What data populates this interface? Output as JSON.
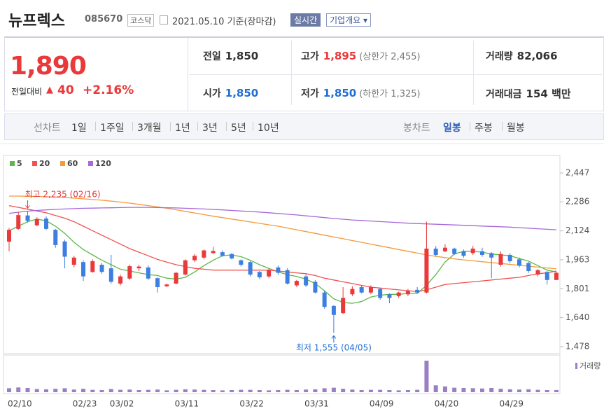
{
  "header": {
    "name": "뉴프렉스",
    "code": "085670",
    "market": "코스닥",
    "date": "2021.05.10 기준(장마감)",
    "realtime": "실시간",
    "overview": "기업개요"
  },
  "quote": {
    "price": "1,890",
    "change_label": "전일대비",
    "change": "40",
    "change_pct": "+2.16%"
  },
  "stats": [
    {
      "label": "전일",
      "value": "1,850"
    },
    {
      "label": "고가",
      "value": "1,895",
      "note": "(상한가 2,455)"
    },
    {
      "label": "거래량",
      "value": "82,066"
    },
    {
      "label": "시가",
      "value": "1,850"
    },
    {
      "label": "저가",
      "value": "1,850",
      "note": "(하한가 1,325)"
    },
    {
      "label": "거래대금",
      "value": "154 백만"
    }
  ],
  "tabs": {
    "line_label": "선차트",
    "line": [
      "1일",
      "1주일",
      "3개월",
      "1년",
      "3년",
      "5년",
      "10년"
    ],
    "candle_label": "봉차트",
    "candle": [
      "일봉",
      "주봉",
      "월봉"
    ]
  },
  "chart_data": {
    "type": "candlestick",
    "up_color": "#e9393b",
    "down_color": "#3d7fe0",
    "categories": [
      "02/10",
      null,
      null,
      null,
      null,
      null,
      null,
      "02/23",
      null,
      null,
      null,
      "03/02",
      null,
      null,
      null,
      null,
      null,
      null,
      "03/11",
      null,
      null,
      null,
      null,
      null,
      null,
      "03/22",
      null,
      null,
      null,
      null,
      null,
      null,
      "03/31",
      null,
      null,
      null,
      null,
      null,
      null,
      "04/09",
      null,
      null,
      null,
      null,
      null,
      null,
      "04/20",
      null,
      null,
      null,
      null,
      null,
      null,
      "04/29",
      null,
      null,
      null,
      null,
      null,
      null
    ],
    "open": [
      2064,
      2135,
      2210,
      2155,
      2193,
      2130,
      2065,
      1935,
      1950,
      1895,
      1935,
      1915,
      1830,
      1858,
      1915,
      1920,
      1860,
      1815,
      1830,
      1880,
      1960,
      1975,
      2000,
      2005,
      1995,
      1960,
      1950,
      1895,
      1870,
      1920,
      1905,
      1820,
      1870,
      1840,
      1780,
      1705,
      1665,
      1770,
      1810,
      1780,
      1800,
      1770,
      1760,
      1770,
      1795,
      1780,
      2025,
      2010,
      2025,
      2010,
      2000,
      2010,
      2000,
      1935,
      1990,
      1965,
      1945,
      1880,
      1895,
      1850
    ],
    "high": [
      2140,
      2230,
      2235,
      2200,
      2205,
      2135,
      2075,
      1985,
      1960,
      1965,
      1945,
      1990,
      1880,
      1935,
      1935,
      1930,
      1865,
      1830,
      1895,
      1965,
      1995,
      2020,
      2035,
      2015,
      2000,
      1965,
      1955,
      1900,
      1915,
      1930,
      1915,
      1850,
      1880,
      1850,
      1790,
      1710,
      1810,
      1815,
      1820,
      1820,
      1805,
      1775,
      1785,
      1800,
      1810,
      2175,
      2040,
      2050,
      2030,
      2020,
      2040,
      2030,
      2005,
      2010,
      2000,
      1975,
      1950,
      1910,
      1900,
      1895
    ],
    "low": [
      2010,
      2130,
      2170,
      2150,
      2130,
      2030,
      1915,
      1920,
      1845,
      1890,
      1885,
      1830,
      1820,
      1850,
      1900,
      1850,
      1780,
      1810,
      1825,
      1875,
      1950,
      1965,
      1995,
      1980,
      1965,
      1925,
      1870,
      1855,
      1860,
      1880,
      1825,
      1810,
      1810,
      1775,
      1690,
      1555,
      1660,
      1760,
      1775,
      1770,
      1740,
      1720,
      1750,
      1760,
      1775,
      1775,
      1980,
      2005,
      1990,
      1975,
      1990,
      1980,
      1860,
      1925,
      1945,
      1920,
      1890,
      1870,
      1825,
      1850
    ],
    "close": [
      2130,
      2212,
      2180,
      2190,
      2135,
      2045,
      1980,
      1975,
      1870,
      1955,
      1895,
      1840,
      1870,
      1927,
      1925,
      1858,
      1810,
      1825,
      1890,
      1960,
      1985,
      2015,
      2012,
      1985,
      1970,
      1935,
      1880,
      1865,
      1905,
      1890,
      1830,
      1845,
      1820,
      1780,
      1700,
      1655,
      1750,
      1800,
      1780,
      1810,
      1750,
      1750,
      1780,
      1790,
      1780,
      2025,
      1990,
      2030,
      1995,
      1985,
      2025,
      1990,
      1975,
      1995,
      1955,
      1930,
      1900,
      1905,
      1850,
      1890
    ],
    "series": [
      {
        "name": "5",
        "color": "#5cb847",
        "values": [
          2125,
          2150,
          2175,
          2190,
          2180,
          2150,
          2110,
          2060,
          2020,
          1990,
          1960,
          1935,
          1910,
          1900,
          1890,
          1880,
          1875,
          1860,
          1855,
          1865,
          1895,
          1930,
          1960,
          1985,
          1990,
          1980,
          1960,
          1935,
          1915,
          1895,
          1880,
          1870,
          1855,
          1830,
          1790,
          1745,
          1725,
          1720,
          1730,
          1755,
          1765,
          1770,
          1770,
          1775,
          1775,
          1820,
          1880,
          1950,
          1995,
          2010,
          2010,
          2005,
          1995,
          1990,
          1985,
          1970,
          1955,
          1930,
          1905,
          1895
        ]
      },
      {
        "name": "20",
        "color": "#ef5350",
        "values": [
          2265,
          2255,
          2245,
          2235,
          2225,
          2210,
          2195,
          2175,
          2150,
          2125,
          2100,
          2075,
          2050,
          2025,
          2005,
          1985,
          1965,
          1950,
          1935,
          1925,
          1915,
          1910,
          1905,
          1905,
          1905,
          1905,
          1905,
          1905,
          1905,
          1900,
          1895,
          1890,
          1885,
          1875,
          1860,
          1850,
          1840,
          1830,
          1820,
          1810,
          1805,
          1800,
          1795,
          1790,
          1785,
          1795,
          1810,
          1825,
          1830,
          1835,
          1840,
          1845,
          1850,
          1855,
          1860,
          1865,
          1875,
          1885,
          1890,
          1900
        ]
      },
      {
        "name": "60",
        "color": "#f5993a",
        "values": [
          2318,
          2318,
          2317,
          2316,
          2314,
          2312,
          2310,
          2307,
          2303,
          2299,
          2295,
          2290,
          2285,
          2279,
          2272,
          2265,
          2258,
          2250,
          2242,
          2233,
          2224,
          2215,
          2206,
          2198,
          2190,
          2182,
          2174,
          2166,
          2158,
          2150,
          2140,
          2130,
          2120,
          2110,
          2100,
          2090,
          2080,
          2070,
          2060,
          2050,
          2040,
          2030,
          2020,
          2010,
          2000,
          1990,
          1982,
          1975,
          1968,
          1962,
          1957,
          1952,
          1947,
          1942,
          1937,
          1932,
          1927,
          1922,
          1917,
          1912
        ]
      },
      {
        "name": "120",
        "color": "#a569d8",
        "values": [
          2222,
          2228,
          2234,
          2238,
          2241,
          2244,
          2246,
          2248,
          2250,
          2251,
          2252,
          2253,
          2254,
          2255,
          2255,
          2255,
          2254,
          2253,
          2252,
          2250,
          2248,
          2246,
          2244,
          2241,
          2238,
          2235,
          2232,
          2229,
          2225,
          2221,
          2217,
          2213,
          2208,
          2203,
          2198,
          2193,
          2189,
          2185,
          2182,
          2179,
          2176,
          2173,
          2170,
          2167,
          2165,
          2163,
          2161,
          2159,
          2157,
          2155,
          2153,
          2151,
          2149,
          2147,
          2145,
          2142,
          2139,
          2136,
          2133,
          2130
        ]
      }
    ],
    "volume": [
      150000,
      180000,
      160000,
      120000,
      110000,
      130000,
      150000,
      100000,
      130000,
      90000,
      80000,
      120000,
      90000,
      100000,
      80000,
      90000,
      100000,
      70000,
      90000,
      110000,
      100000,
      90000,
      80000,
      70000,
      80000,
      90000,
      90000,
      80000,
      70000,
      80000,
      90000,
      80000,
      100000,
      110000,
      150000,
      170000,
      130000,
      100000,
      80000,
      90000,
      90000,
      80000,
      70000,
      80000,
      90000,
      1200000,
      260000,
      220000,
      170000,
      160000,
      150000,
      140000,
      160000,
      130000,
      110000,
      100000,
      110000,
      90000,
      80000,
      82066
    ],
    "volume_label": "거래량",
    "volume_color": "#9a7fc4",
    "annotations": {
      "high": "최고 2,235 (02/16)",
      "low": "최저 1,555 (04/05)"
    },
    "ylim": [
      1478,
      2447
    ],
    "yticks": [
      {
        "value": 1478,
        "label": "1,478"
      },
      {
        "value": 1640,
        "label": "1,640"
      },
      {
        "value": 1801,
        "label": "1,801"
      },
      {
        "value": 1963,
        "label": "1,963"
      },
      {
        "value": 2124,
        "label": "2,124"
      },
      {
        "value": 2286,
        "label": "2,286"
      },
      {
        "value": 2447,
        "label": "2,447"
      }
    ]
  }
}
